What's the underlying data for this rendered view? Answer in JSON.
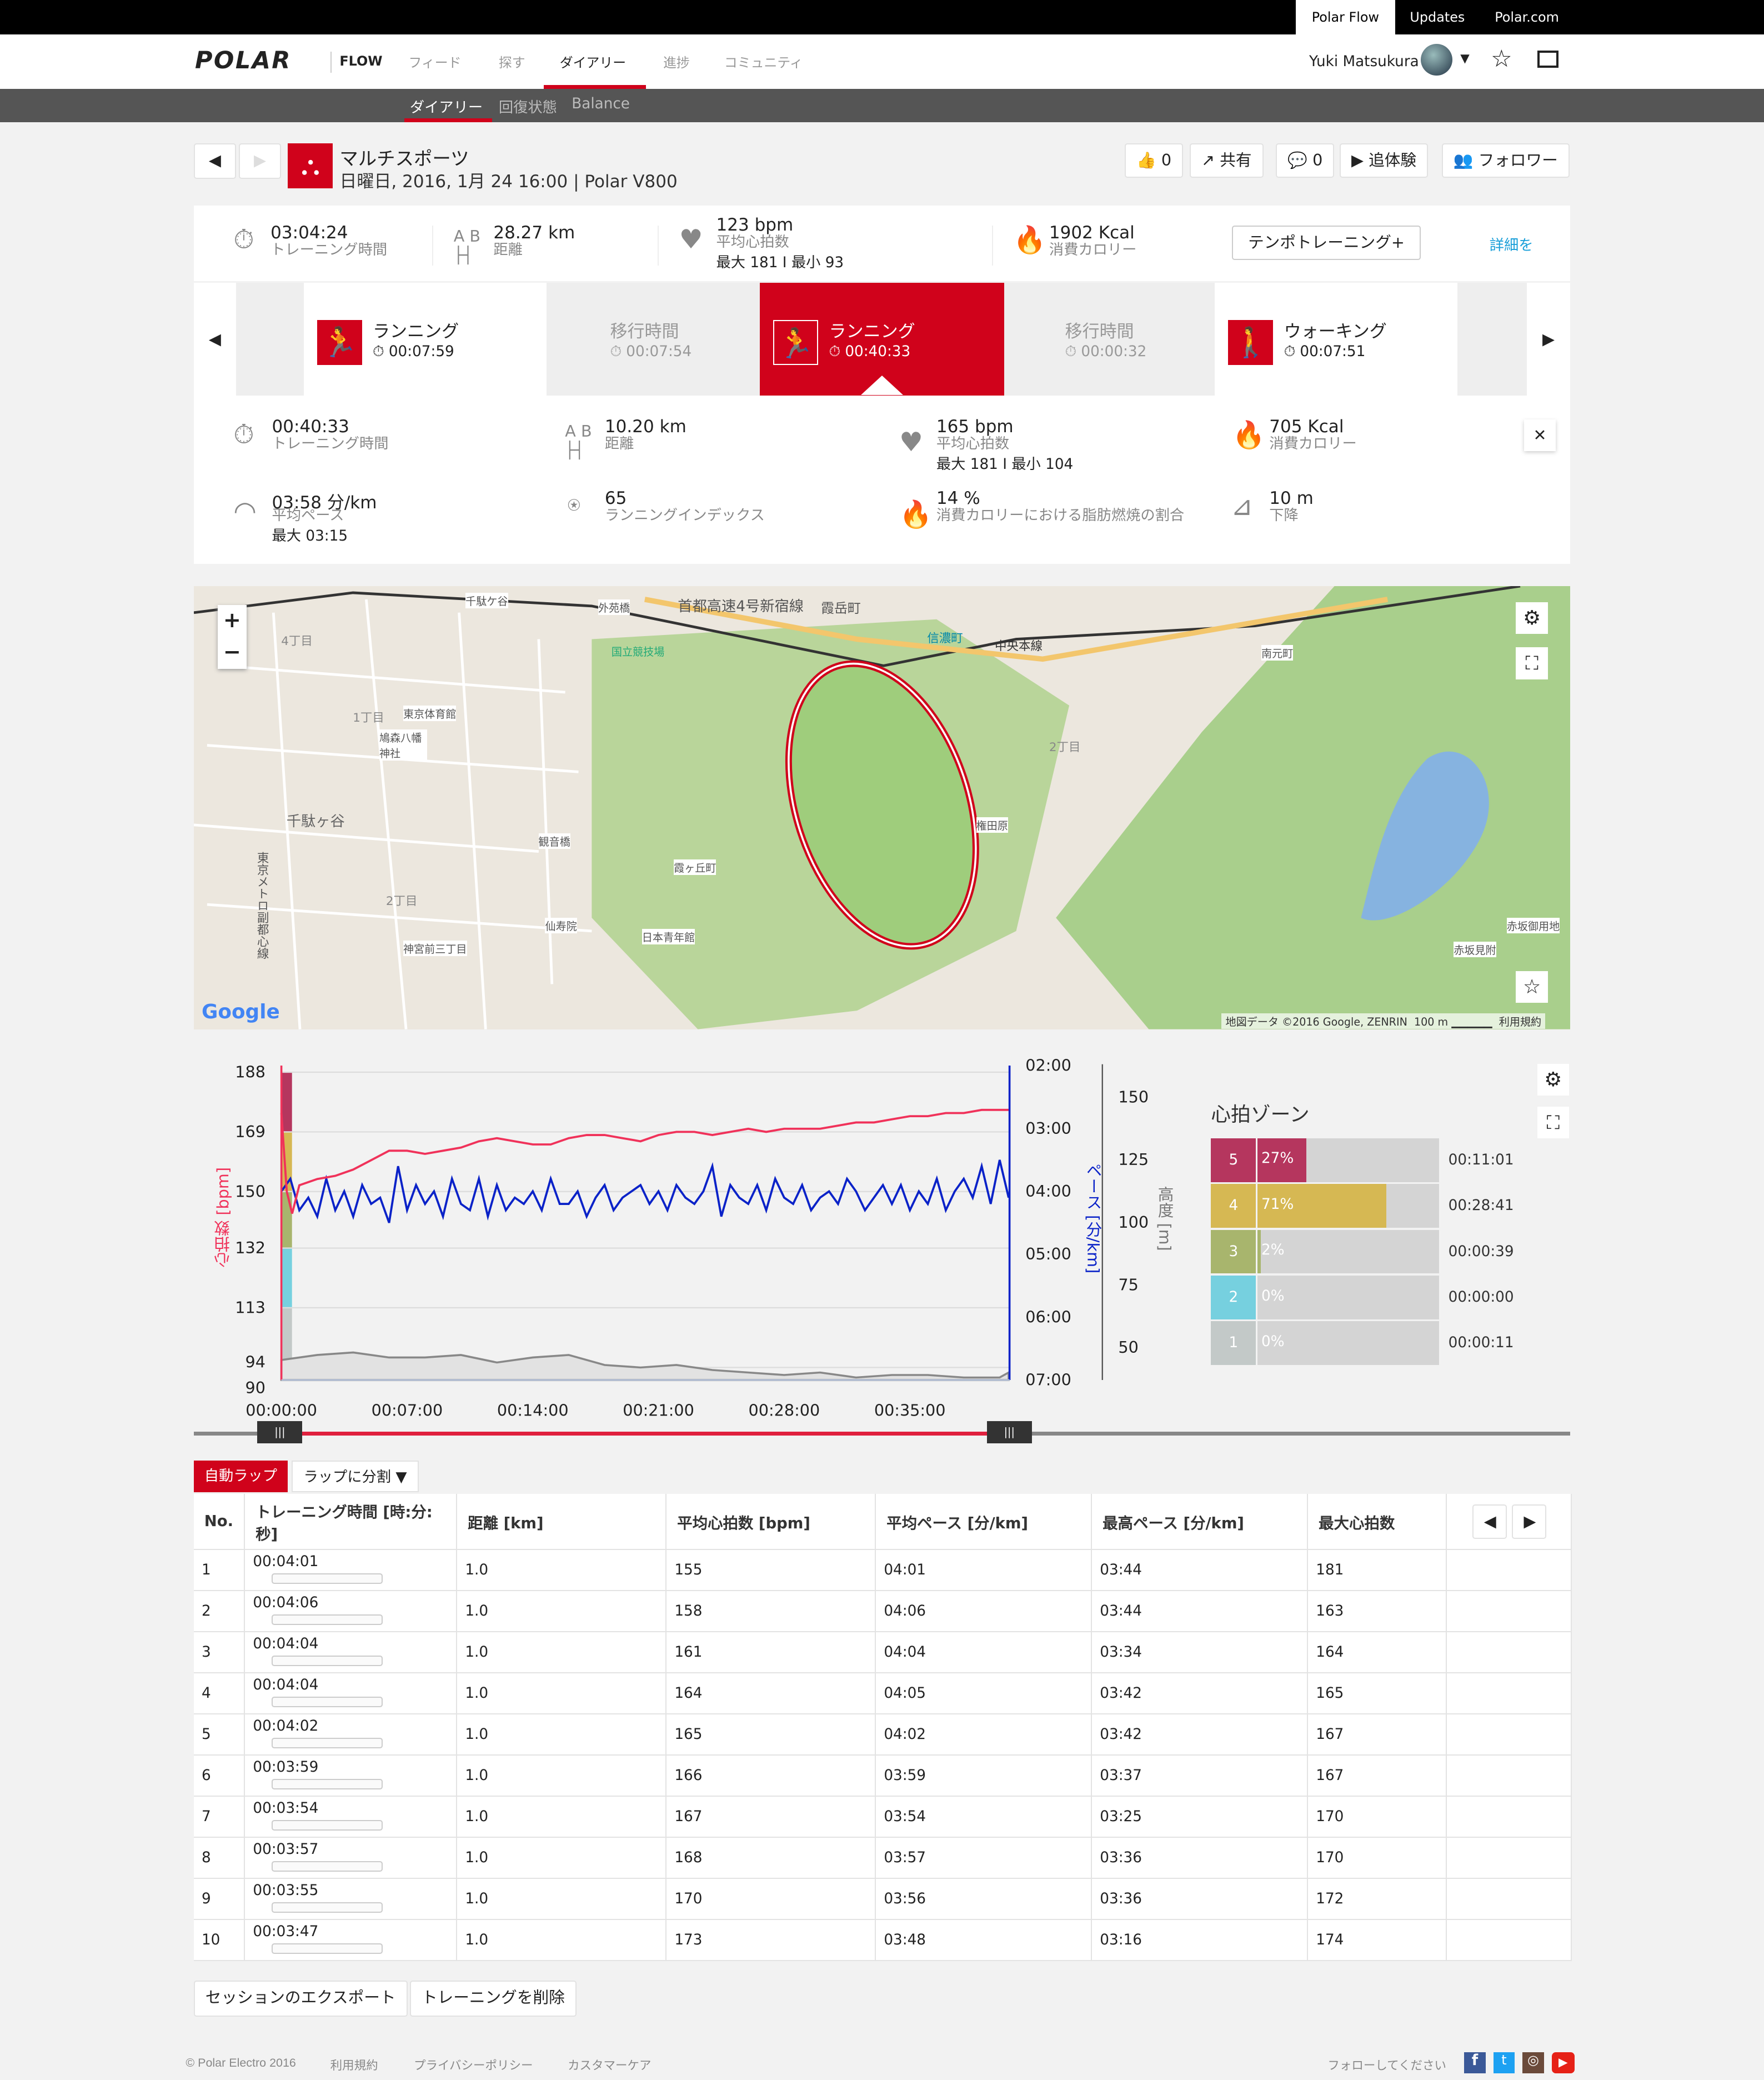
{
  "topbar": {
    "links": [
      "Polar Flow",
      "Updates",
      "Polar.com"
    ]
  },
  "nav": {
    "logo": "POLAR",
    "flow": "FLOW",
    "items": [
      "フィード",
      "探す",
      "ダイアリー",
      "進捗",
      "コミュニティ"
    ],
    "active": "ダイアリー",
    "user": "Yuki Matsukura"
  },
  "subnav": {
    "items": [
      "ダイアリー",
      "回復状態",
      "Balance"
    ],
    "active": "ダイアリー"
  },
  "session": {
    "title": "マルチスポーツ",
    "subtitle": "日曜日, 2016, 1月 24 16:00 | Polar V800",
    "likes": "0",
    "share": "共有",
    "comments": "0",
    "replay": "追体験",
    "followers": "フォロワー"
  },
  "summary": {
    "duration": "03:04:24",
    "duration_label": "トレーニング時間",
    "distance": "28.27 km",
    "distance_label": "距離",
    "hr": "123 bpm",
    "hr_label": "平均心拍数",
    "hr_minmax": "最大 181 I 最小 93",
    "calories": "1902 Kcal",
    "calories_label": "消費カロリー",
    "tempo_button": "テンポトレーニング+",
    "details_link": "詳細を"
  },
  "exercises": [
    {
      "name": "ランニング",
      "time": "00:07:59",
      "type": "sport"
    },
    {
      "name": "移行時間",
      "time": "00:07:54",
      "type": "transition"
    },
    {
      "name": "ランニング",
      "time": "00:40:33",
      "type": "sport",
      "selected": true
    },
    {
      "name": "移行時間",
      "time": "00:00:32",
      "type": "transition"
    },
    {
      "name": "ウォーキング",
      "time": "00:07:51",
      "type": "sport"
    }
  ],
  "detail": {
    "duration": "00:40:33",
    "duration_label": "トレーニング時間",
    "distance": "10.20 km",
    "distance_label": "距離",
    "hr": "165 bpm",
    "hr_label": "平均心拍数",
    "hr_minmax": "最大 181 I 最小 104",
    "calories": "705 Kcal",
    "calories_label": "消費カロリー",
    "pace": "03:58 分/km",
    "pace_label": "平均ペース",
    "pace_max": "最大 03:15",
    "running_index": "65",
    "running_index_label": "ランニングインデックス",
    "fat": "14 %",
    "fat_label": "消費カロリーにおける脂肪燃焼の割合",
    "descent": "10 m",
    "descent_label": "下降"
  },
  "map": {
    "labels": [
      "首都高速4号新宿線",
      "霞岳町",
      "外苑橋",
      "千駄ケ谷",
      "国立競技場",
      "信濃町",
      "中央本線",
      "千駄ヶ谷",
      "4丁目",
      "1丁目",
      "2丁目",
      "東京体育館",
      "鳩森八幡神社",
      "観音橋",
      "霞ヶ丘町",
      "仙寿院",
      "日本青年館",
      "神宮前三丁目",
      "2丁目",
      "南元町",
      "権田原",
      "赤坂御用地",
      "赤坂見附",
      "東京メトロ副都心線",
      "Google"
    ],
    "attribution": "地図データ ©2016 Google, ZENRIN",
    "scale": "100 m",
    "terms": "利用規約"
  },
  "chart_data": {
    "type": "line",
    "xlabel": "",
    "x_ticks": [
      "00:00:00",
      "00:07:00",
      "00:14:00",
      "00:21:00",
      "00:28:00",
      "00:35:00"
    ],
    "x_range_min": [
      0,
      40.55
    ],
    "hr": {
      "ylabel": "心拍数 [bpm]",
      "ticks": [
        "188",
        "169",
        "150",
        "132",
        "113",
        "94",
        "90"
      ],
      "range": [
        90,
        188
      ],
      "color": "#f0325a",
      "x_min": [
        0,
        0.3,
        0.6,
        1,
        2,
        3,
        4,
        5,
        6,
        7,
        8,
        9,
        10,
        11,
        12,
        13,
        14,
        15,
        16,
        17,
        18,
        19,
        20,
        21,
        22,
        23,
        24,
        25,
        26,
        27,
        28,
        29,
        30,
        31,
        32,
        33,
        34,
        35,
        36,
        37,
        38,
        39,
        40,
        40.5
      ],
      "values": [
        175,
        150,
        143,
        152,
        154,
        155,
        157,
        160,
        163,
        163,
        162,
        163,
        164,
        166,
        167,
        166,
        165,
        165,
        167,
        168,
        168,
        167,
        166,
        168,
        169,
        169,
        168,
        169,
        170,
        169,
        170,
        170,
        170,
        171,
        172,
        172,
        173,
        174,
        174,
        175,
        175,
        176,
        176,
        176
      ]
    },
    "pace": {
      "ylabel": "ペース [分/km]",
      "ticks": [
        "02:00",
        "03:00",
        "04:00",
        "05:00",
        "06:00",
        "07:00"
      ],
      "range_min": [
        2,
        7
      ],
      "color": "#0a22c8",
      "x_min": [
        0,
        0.5,
        1,
        1.5,
        2,
        2.5,
        3,
        3.5,
        4,
        4.5,
        5,
        5.5,
        6,
        6.5,
        7,
        7.5,
        8,
        8.5,
        9,
        9.5,
        10,
        10.5,
        11,
        11.5,
        12,
        12.5,
        13,
        13.5,
        14,
        14.5,
        15,
        15.5,
        16,
        16.5,
        17,
        17.5,
        18,
        18.5,
        19,
        19.5,
        20,
        20.5,
        21,
        21.5,
        22,
        22.5,
        23,
        23.5,
        24,
        24.5,
        25,
        25.5,
        26,
        26.5,
        27,
        27.5,
        28,
        28.5,
        29,
        29.5,
        30,
        30.5,
        31,
        31.5,
        32,
        32.5,
        33,
        33.5,
        34,
        34.5,
        35,
        35.5,
        36,
        36.5,
        37,
        37.5,
        38,
        38.5,
        39,
        39.5,
        40,
        40.5
      ],
      "values": [
        4.0,
        3.8,
        4.3,
        4.1,
        4.4,
        3.8,
        4.3,
        4.0,
        4.4,
        3.9,
        4.2,
        4.1,
        4.5,
        3.6,
        4.3,
        3.9,
        4.2,
        4.0,
        4.4,
        3.8,
        4.2,
        4.3,
        3.8,
        4.4,
        3.9,
        4.3,
        4.1,
        4.2,
        4.0,
        4.3,
        3.8,
        4.2,
        4.2,
        4.0,
        4.4,
        4.1,
        3.9,
        4.3,
        4.1,
        4.0,
        3.9,
        4.2,
        4.0,
        4.3,
        3.9,
        4.1,
        4.2,
        4.0,
        3.6,
        4.4,
        3.9,
        4.1,
        4.2,
        3.9,
        4.3,
        3.8,
        4.1,
        4.2,
        3.9,
        4.3,
        4.1,
        4.0,
        4.2,
        3.8,
        4.0,
        4.3,
        4.1,
        3.9,
        4.2,
        3.9,
        4.3,
        4.0,
        4.2,
        3.8,
        4.3,
        4.0,
        3.8,
        4.1,
        3.6,
        4.2,
        3.5,
        4.1
      ]
    },
    "altitude": {
      "ylabel": "高度 [m]",
      "ticks": [
        "150",
        "125",
        "100",
        "75",
        "50"
      ],
      "range": [
        37,
        160
      ],
      "color": "#888888",
      "x_min": [
        0,
        2,
        4,
        6,
        8,
        10,
        12,
        14,
        16,
        18,
        20,
        22,
        24,
        26,
        28,
        30,
        32,
        34,
        36,
        38,
        40,
        40.5
      ],
      "values": [
        45,
        47,
        48,
        46,
        46,
        47,
        44,
        46,
        47,
        43,
        42,
        43,
        41,
        40,
        39,
        40,
        38,
        39,
        39,
        38,
        38,
        40
      ]
    },
    "grid": true
  },
  "zones": {
    "title": "心拍ゾーン",
    "items": [
      {
        "zone": "5",
        "pct": 27,
        "label": "27%",
        "time": "00:11:01",
        "color": "#b5365e"
      },
      {
        "zone": "4",
        "pct": 71,
        "label": "71%",
        "time": "00:28:41",
        "color": "#d6b853"
      },
      {
        "zone": "3",
        "pct": 2,
        "label": "2%",
        "time": "00:00:39",
        "color": "#a8b56d"
      },
      {
        "zone": "2",
        "pct": 0,
        "label": "0%",
        "time": "00:00:00",
        "color": "#76d0df"
      },
      {
        "zone": "1",
        "pct": 0,
        "label": "0%",
        "time": "00:00:11",
        "color": "#c3c9c8"
      }
    ]
  },
  "laps": {
    "auto_lap": "自動ラップ",
    "split": "ラップに分割",
    "headers": [
      "No.",
      "トレーニング時間 [時:分:秒]",
      "距離 [km]",
      "平均心拍数 [bpm]",
      "平均ペース [分/km]",
      "最高ペース [分/km]",
      "最大心拍数"
    ],
    "rows": [
      [
        "1",
        "00:04:01",
        "1.0",
        "155",
        "04:01",
        "03:44",
        "181"
      ],
      [
        "2",
        "00:04:06",
        "1.0",
        "158",
        "04:06",
        "03:44",
        "163"
      ],
      [
        "3",
        "00:04:04",
        "1.0",
        "161",
        "04:04",
        "03:34",
        "164"
      ],
      [
        "4",
        "00:04:04",
        "1.0",
        "164",
        "04:05",
        "03:42",
        "165"
      ],
      [
        "5",
        "00:04:02",
        "1.0",
        "165",
        "04:02",
        "03:42",
        "167"
      ],
      [
        "6",
        "00:03:59",
        "1.0",
        "166",
        "03:59",
        "03:37",
        "167"
      ],
      [
        "7",
        "00:03:54",
        "1.0",
        "167",
        "03:54",
        "03:25",
        "170"
      ],
      [
        "8",
        "00:03:57",
        "1.0",
        "168",
        "03:57",
        "03:36",
        "170"
      ],
      [
        "9",
        "00:03:55",
        "1.0",
        "170",
        "03:56",
        "03:36",
        "172"
      ],
      [
        "10",
        "00:03:47",
        "1.0",
        "173",
        "03:48",
        "03:16",
        "174"
      ]
    ]
  },
  "actions": {
    "export": "セッションのエクスポート",
    "delete": "トレーニングを削除"
  },
  "footer": {
    "copyright": "© Polar Electro 2016",
    "links": [
      "利用規約",
      "プライバシーポリシー",
      "カスタマーケア"
    ],
    "follow": "フォローしてください"
  },
  "colors": {
    "accent": "#d0021b",
    "hr": "#f0325a",
    "pace": "#0a22c8"
  }
}
